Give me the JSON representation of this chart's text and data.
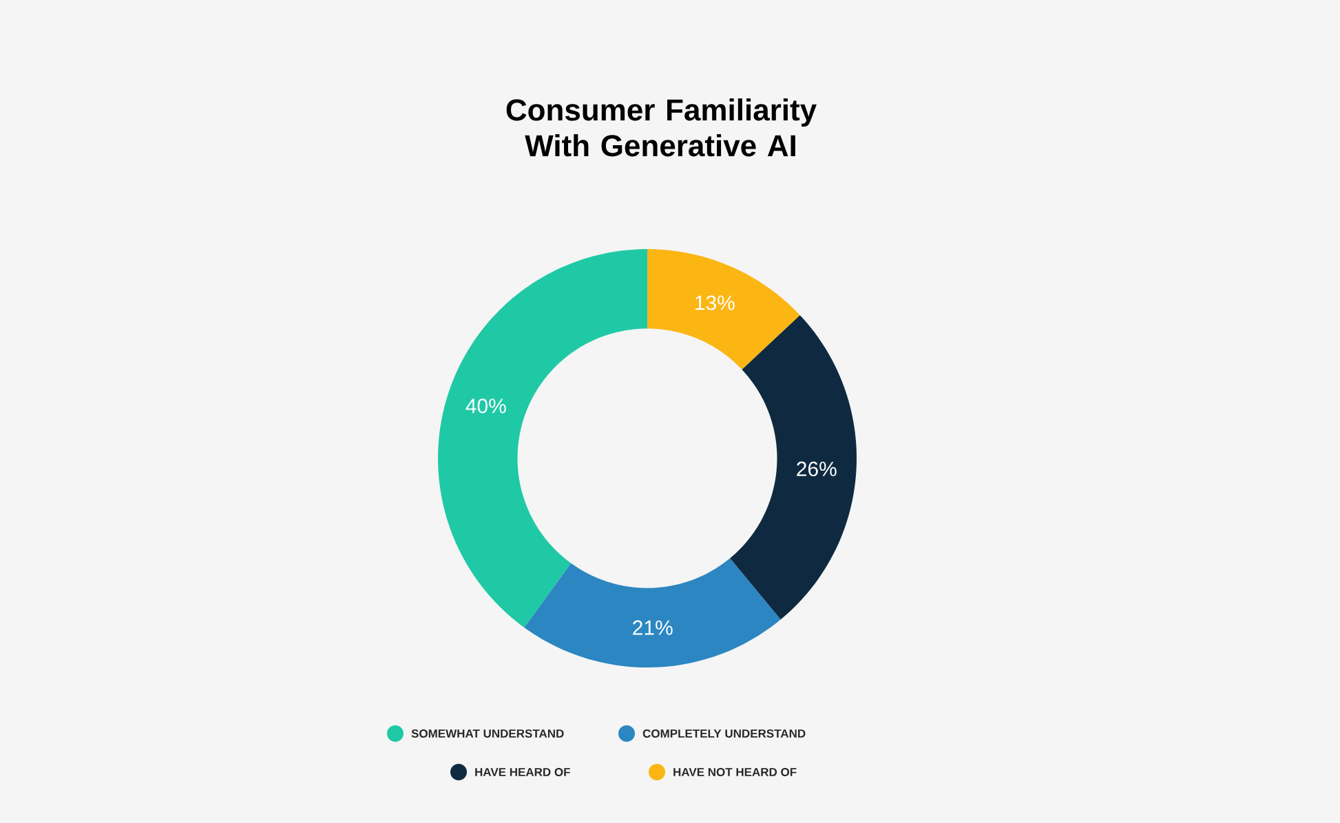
{
  "chart_data": {
    "type": "donut",
    "title": "Consumer Familiarity With Generative AI",
    "categories": [
      "SOMEWHAT UNDERSTAND",
      "COMPLETELY UNDERSTAND",
      "HAVE HEARD OF",
      "HAVE NOT HEARD OF"
    ],
    "values": [
      40,
      21,
      26,
      13
    ],
    "colors": [
      "#20c9a6",
      "#2c86c1",
      "#0f2a40",
      "#fbb614"
    ],
    "value_labels": [
      "40%",
      "21%",
      "26%",
      "13%"
    ],
    "legend": "bottom"
  }
}
